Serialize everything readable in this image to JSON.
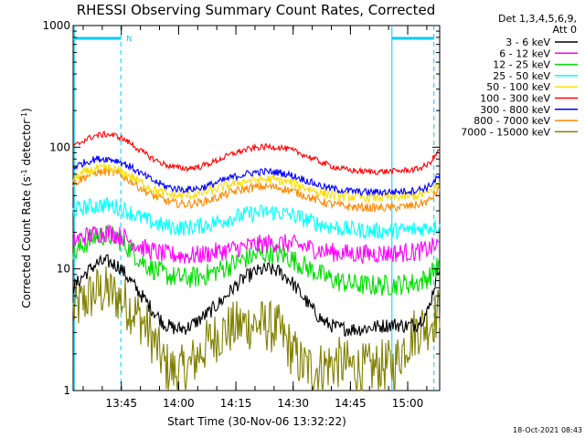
{
  "chart_data": {
    "type": "line",
    "title": "RHESSI Observing Summary Count Rates, Corrected",
    "xlabel": "Start Time (30-Nov-06 13:32:22)",
    "ylabel_main": "Corrected Count Rate (s",
    "ylabel_exp1": "-1",
    "ylabel_mid": " detector",
    "ylabel_exp2": "-1",
    "ylabel_end": ")",
    "yscale": "log",
    "ylim": [
      1,
      1000
    ],
    "xlim_minutes": [
      0,
      96
    ],
    "x_unit": "minutes since 13:32:22",
    "y_ticks": [
      {
        "value": 1,
        "label": "1"
      },
      {
        "value": 10,
        "label": "10"
      },
      {
        "value": 100,
        "label": "100"
      },
      {
        "value": 1000,
        "label": "1000"
      }
    ],
    "x_ticks": [
      {
        "minute": 12.63,
        "label": "13:45"
      },
      {
        "minute": 27.63,
        "label": "14:00"
      },
      {
        "minute": 42.63,
        "label": "14:15"
      },
      {
        "minute": 57.63,
        "label": "14:30"
      },
      {
        "minute": 72.63,
        "label": "14:45"
      },
      {
        "minute": 87.63,
        "label": "15:00"
      }
    ],
    "legend_header": [
      "Det 1,3,4,5,6,9,",
      "Att 0"
    ],
    "legend_position": "right",
    "series": [
      {
        "name": "3 - 6 keV",
        "color": "#000000",
        "x": [
          0,
          3,
          6,
          9,
          12,
          15,
          18,
          21,
          24,
          27,
          30,
          33,
          36,
          39,
          42,
          45,
          48,
          51,
          54,
          57,
          60,
          63,
          66,
          69,
          72,
          75,
          78,
          81,
          84,
          87,
          90,
          93,
          96
        ],
        "y": [
          7,
          9,
          11,
          11.5,
          10.5,
          8,
          6,
          4.5,
          3.5,
          3.2,
          3.3,
          3.8,
          4.5,
          5.5,
          7,
          8.5,
          9.5,
          10,
          9.5,
          8,
          6,
          4.5,
          3.6,
          3.3,
          3.2,
          3.2,
          3.3,
          3.4,
          3.5,
          3.4,
          3.5,
          4.5,
          11
        ]
      },
      {
        "name": "6 - 12 keV",
        "color": "#ff00ff",
        "x": [
          0,
          3,
          6,
          9,
          12,
          15,
          18,
          21,
          24,
          27,
          30,
          33,
          36,
          39,
          42,
          45,
          48,
          51,
          54,
          57,
          60,
          63,
          66,
          69,
          72,
          75,
          78,
          81,
          84,
          87,
          90,
          93,
          96
        ],
        "y": [
          17,
          18.5,
          19.5,
          20,
          19,
          17,
          15,
          14,
          13.2,
          13,
          12.8,
          13,
          13.5,
          14,
          14.6,
          15.2,
          15.8,
          16.2,
          16.3,
          16,
          15.4,
          14.6,
          14,
          13.6,
          13.4,
          13.3,
          13.3,
          13.4,
          13.5,
          13.6,
          13.8,
          14.5,
          16
        ]
      },
      {
        "name": "12 - 25 keV",
        "color": "#00dd00",
        "x": [
          0,
          3,
          6,
          9,
          12,
          15,
          18,
          21,
          24,
          27,
          30,
          33,
          36,
          39,
          42,
          45,
          48,
          51,
          54,
          57,
          60,
          63,
          66,
          69,
          72,
          75,
          78,
          81,
          84,
          87,
          90,
          93,
          96
        ],
        "y": [
          13,
          16,
          18.5,
          19,
          17.5,
          14.5,
          11.5,
          10,
          9,
          8.5,
          8.4,
          8.6,
          9.2,
          10,
          11,
          12,
          13,
          13.4,
          13.2,
          12.2,
          10.8,
          9.6,
          8.6,
          8,
          7.6,
          7.4,
          7.3,
          7.3,
          7.4,
          7.5,
          7.7,
          8.5,
          11
        ]
      },
      {
        "name": "25 - 50 keV",
        "color": "#00ffff",
        "x": [
          0,
          3,
          6,
          9,
          12,
          15,
          18,
          21,
          24,
          27,
          30,
          33,
          36,
          39,
          42,
          45,
          48,
          51,
          54,
          57,
          60,
          63,
          66,
          69,
          72,
          75,
          78,
          81,
          84,
          87,
          90,
          93,
          96
        ],
        "y": [
          30,
          32,
          33,
          33.5,
          32,
          29,
          26,
          24,
          22.5,
          21.8,
          21.8,
          22.5,
          23.5,
          25,
          26.5,
          27.8,
          28.8,
          29.3,
          29,
          27.8,
          26,
          24.2,
          22.8,
          21.8,
          21.2,
          20.8,
          20.5,
          20.5,
          20.6,
          20.8,
          21.2,
          22,
          22.5
        ]
      },
      {
        "name": "50 - 100 keV",
        "color": "#ffdd00",
        "x": [
          0,
          3,
          6,
          9,
          12,
          15,
          18,
          21,
          24,
          27,
          30,
          33,
          36,
          39,
          42,
          45,
          48,
          51,
          54,
          57,
          60,
          63,
          66,
          69,
          72,
          75,
          78,
          81,
          84,
          87,
          90,
          93,
          96
        ],
        "y": [
          55,
          62,
          66,
          67,
          64,
          58,
          51,
          45,
          41.5,
          40,
          40,
          41.5,
          44,
          47,
          50,
          52.5,
          54,
          54.5,
          53.5,
          51,
          47.5,
          44,
          41.5,
          40,
          39.2,
          38.8,
          38.6,
          38.6,
          38.8,
          39.2,
          40,
          42,
          50
        ]
      },
      {
        "name": "100 - 300 keV",
        "color": "#ff0000",
        "x": [
          0,
          3,
          6,
          9,
          12,
          15,
          18,
          21,
          24,
          27,
          30,
          33,
          36,
          39,
          42,
          45,
          48,
          51,
          54,
          57,
          60,
          63,
          66,
          69,
          72,
          75,
          78,
          81,
          84,
          87,
          90,
          93,
          96
        ],
        "y": [
          100,
          115,
          125,
          128,
          122,
          108,
          92,
          80,
          72,
          68,
          67,
          69,
          74,
          81,
          89,
          95,
          99,
          101,
          100,
          95,
          88,
          80,
          73,
          68,
          65,
          63.5,
          63,
          63,
          63.5,
          64.5,
          66,
          72,
          95
        ]
      },
      {
        "name": "300 - 800 keV",
        "color": "#0000ff",
        "x": [
          0,
          3,
          6,
          9,
          12,
          15,
          18,
          21,
          24,
          27,
          30,
          33,
          36,
          39,
          42,
          45,
          48,
          51,
          54,
          57,
          60,
          63,
          66,
          69,
          72,
          75,
          78,
          81,
          84,
          87,
          90,
          93,
          96
        ],
        "y": [
          68,
          75,
          80,
          80.5,
          77,
          69,
          60,
          53,
          48,
          45.5,
          45,
          46,
          49,
          53,
          57,
          60,
          62.5,
          63,
          62,
          59,
          55,
          50.5,
          47,
          45,
          43.8,
          43,
          42.8,
          42.8,
          43,
          43.5,
          44.5,
          47,
          58
        ]
      },
      {
        "name": "800 - 7000 keV",
        "color": "#ff8800",
        "x": [
          0,
          3,
          6,
          9,
          12,
          15,
          18,
          21,
          24,
          27,
          30,
          33,
          36,
          39,
          42,
          45,
          48,
          51,
          54,
          57,
          60,
          63,
          66,
          69,
          72,
          75,
          78,
          81,
          84,
          87,
          90,
          93,
          96
        ],
        "y": [
          50,
          57,
          62,
          63,
          60,
          53,
          45.5,
          40,
          36.5,
          34.5,
          34,
          35,
          37,
          40,
          43,
          45.5,
          47,
          47.5,
          46.5,
          44,
          41,
          37.5,
          35,
          33.5,
          32.5,
          32,
          31.8,
          31.8,
          32,
          32.5,
          33.5,
          36,
          45
        ]
      },
      {
        "name": "7000 - 15000 keV",
        "color": "#808000",
        "x": [
          0,
          3,
          6,
          9,
          12,
          15,
          18,
          21,
          24,
          27,
          30,
          33,
          36,
          39,
          42,
          45,
          48,
          51,
          54,
          57,
          60,
          63,
          66,
          69,
          72,
          75,
          78,
          81,
          84,
          87,
          90,
          93,
          96
        ],
        "y": [
          4.5,
          5.5,
          6.5,
          6.5,
          5.8,
          4.8,
          3.8,
          2.6,
          1.6,
          1.4,
          1.5,
          2,
          2.6,
          3,
          3.3,
          3.5,
          3.5,
          3.4,
          3.1,
          2.2,
          1.6,
          1.5,
          1.6,
          1.7,
          1.6,
          1.5,
          1.5,
          1.6,
          1.6,
          2.4,
          3.2,
          3.5,
          4.5
        ]
      }
    ],
    "annotations": {
      "top_marker_label": "N",
      "top_bars": [
        {
          "from_minute": 0,
          "to_minute": 12.5,
          "color": "#00ccff"
        },
        {
          "from_minute": 83.5,
          "to_minute": 94.5,
          "color": "#00ccff"
        }
      ],
      "solid_vlines": [
        0.3,
        83.5
      ],
      "dashed_vlines": [
        12.5,
        94.5
      ],
      "vline_color": "#00ccff"
    },
    "timestamp": "18-Oct-2021 08:43",
    "grid": false
  }
}
